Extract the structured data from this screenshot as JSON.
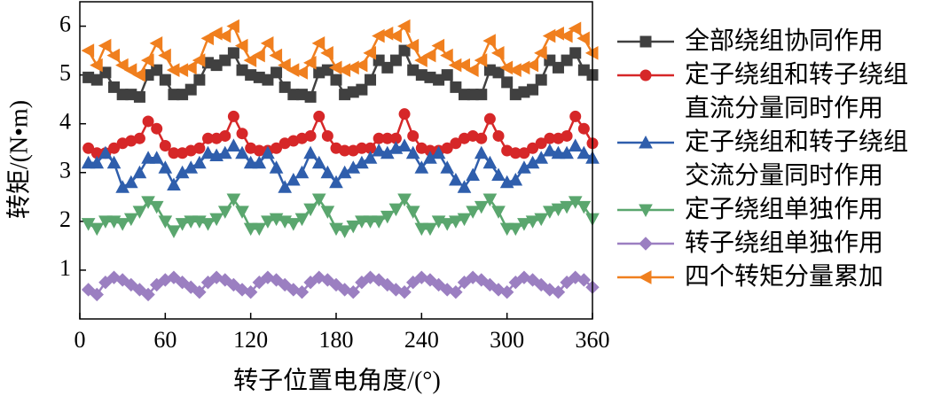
{
  "chart_data": {
    "type": "line",
    "xlabel": "转子位置电角度/(°)",
    "ylabel": "转矩/(N•m)",
    "xlim": [
      0,
      360
    ],
    "xticks": [
      0,
      60,
      120,
      180,
      240,
      300,
      360
    ],
    "ylim": [
      0,
      6.5
    ],
    "yticks": [
      1,
      2,
      3,
      4,
      5,
      6
    ],
    "x": [
      6,
      12,
      18,
      24,
      30,
      36,
      42,
      48,
      54,
      60,
      66,
      72,
      78,
      84,
      90,
      96,
      102,
      108,
      114,
      120,
      126,
      132,
      138,
      144,
      150,
      156,
      162,
      168,
      174,
      180,
      186,
      192,
      198,
      204,
      210,
      216,
      222,
      228,
      234,
      240,
      246,
      252,
      258,
      264,
      270,
      276,
      282,
      288,
      294,
      300,
      306,
      312,
      318,
      324,
      330,
      336,
      342,
      348,
      354,
      360
    ],
    "series": [
      {
        "name": "全部绕组协同作用",
        "color": "#404040",
        "marker": "square",
        "values": [
          4.95,
          4.9,
          5.05,
          4.75,
          4.6,
          4.6,
          4.55,
          5.0,
          5.1,
          4.9,
          4.6,
          4.6,
          4.7,
          4.9,
          5.25,
          5.2,
          5.3,
          5.45,
          5.1,
          5.0,
          4.95,
          4.9,
          5.05,
          4.75,
          4.6,
          4.6,
          4.55,
          5.05,
          5.1,
          4.9,
          4.6,
          4.65,
          4.7,
          4.9,
          5.3,
          5.15,
          5.3,
          5.5,
          5.1,
          5.0,
          4.95,
          4.9,
          5.0,
          4.75,
          4.6,
          4.6,
          4.6,
          5.1,
          5.05,
          4.85,
          4.6,
          4.65,
          4.7,
          4.9,
          5.3,
          5.15,
          5.3,
          5.45,
          5.1,
          5.0
        ]
      },
      {
        "name": "定子绕组和转子绕组直流分量同时作用",
        "color": "#d62728",
        "marker": "circle",
        "values": [
          3.5,
          3.4,
          3.4,
          3.5,
          3.6,
          3.65,
          3.7,
          4.05,
          3.9,
          3.55,
          3.4,
          3.4,
          3.45,
          3.5,
          3.7,
          3.7,
          3.75,
          4.15,
          3.8,
          3.5,
          3.45,
          3.45,
          3.5,
          3.6,
          3.65,
          3.7,
          3.75,
          4.15,
          3.75,
          3.5,
          3.45,
          3.45,
          3.5,
          3.5,
          3.7,
          3.7,
          3.7,
          4.2,
          3.75,
          3.5,
          3.45,
          3.45,
          3.5,
          3.6,
          3.7,
          3.75,
          3.7,
          4.1,
          3.75,
          3.45,
          3.4,
          3.4,
          3.5,
          3.6,
          3.7,
          3.7,
          3.75,
          4.15,
          3.9,
          3.6
        ]
      },
      {
        "name": "定子绕组和转子绕组交流分量同时作用",
        "color": "#2f5eac",
        "marker": "triangle-up",
        "values": [
          3.2,
          3.2,
          3.4,
          3.2,
          2.7,
          2.8,
          3.0,
          3.3,
          3.3,
          3.1,
          2.75,
          3.0,
          3.1,
          3.2,
          3.4,
          3.35,
          3.4,
          3.55,
          3.4,
          3.2,
          3.2,
          3.4,
          3.1,
          2.7,
          2.85,
          3.0,
          3.4,
          3.2,
          3.0,
          2.8,
          3.0,
          3.1,
          3.2,
          3.3,
          3.45,
          3.4,
          3.5,
          3.55,
          3.4,
          3.1,
          3.3,
          3.4,
          3.1,
          2.85,
          2.7,
          2.95,
          3.4,
          3.2,
          2.95,
          2.8,
          2.85,
          3.1,
          3.2,
          3.3,
          3.45,
          3.4,
          3.4,
          3.55,
          3.4,
          3.3
        ]
      },
      {
        "name": "定子绕组单独作用",
        "color": "#5aa66e",
        "marker": "triangle-down",
        "values": [
          1.95,
          1.85,
          2.0,
          2.0,
          1.95,
          2.05,
          2.2,
          2.4,
          2.3,
          2.0,
          1.8,
          1.95,
          2.0,
          2.0,
          1.95,
          2.05,
          2.2,
          2.45,
          2.2,
          1.85,
          1.85,
          2.0,
          2.05,
          2.0,
          1.95,
          2.05,
          2.25,
          2.45,
          2.2,
          1.85,
          1.8,
          1.9,
          2.0,
          2.0,
          2.0,
          2.1,
          2.25,
          2.45,
          2.2,
          1.85,
          1.85,
          2.0,
          1.95,
          2.0,
          2.05,
          2.2,
          2.3,
          2.45,
          2.2,
          1.85,
          1.85,
          1.95,
          2.0,
          2.05,
          2.2,
          2.25,
          2.3,
          2.4,
          2.3,
          2.05
        ]
      },
      {
        "name": "转子绕组单独作用",
        "color": "#9b7fc1",
        "marker": "diamond",
        "values": [
          0.6,
          0.5,
          0.75,
          0.85,
          0.8,
          0.7,
          0.6,
          0.5,
          0.7,
          0.8,
          0.85,
          0.75,
          0.65,
          0.55,
          0.75,
          0.85,
          0.8,
          0.7,
          0.6,
          0.55,
          0.75,
          0.85,
          0.8,
          0.7,
          0.6,
          0.55,
          0.75,
          0.85,
          0.8,
          0.7,
          0.6,
          0.55,
          0.75,
          0.85,
          0.8,
          0.7,
          0.6,
          0.55,
          0.75,
          0.85,
          0.8,
          0.7,
          0.6,
          0.55,
          0.75,
          0.85,
          0.8,
          0.7,
          0.6,
          0.55,
          0.75,
          0.85,
          0.8,
          0.7,
          0.6,
          0.55,
          0.75,
          0.85,
          0.8,
          0.65
        ]
      },
      {
        "name": "四个转矩分量累加",
        "color": "#f07f1e",
        "marker": "triangle-left",
        "values": [
          5.5,
          5.2,
          5.6,
          5.4,
          5.2,
          5.1,
          5.0,
          5.3,
          5.65,
          5.4,
          5.1,
          5.1,
          5.15,
          5.3,
          5.75,
          5.85,
          5.8,
          6.0,
          5.6,
          5.3,
          5.4,
          5.65,
          5.4,
          5.2,
          5.1,
          5.05,
          5.25,
          5.65,
          5.45,
          5.15,
          5.1,
          5.15,
          5.2,
          5.45,
          5.8,
          5.85,
          5.8,
          6.0,
          5.6,
          5.3,
          5.4,
          5.6,
          5.4,
          5.2,
          5.2,
          5.1,
          5.3,
          5.7,
          5.45,
          5.15,
          5.1,
          5.15,
          5.2,
          5.45,
          5.8,
          5.85,
          5.8,
          5.95,
          5.75,
          5.45
        ]
      }
    ]
  }
}
